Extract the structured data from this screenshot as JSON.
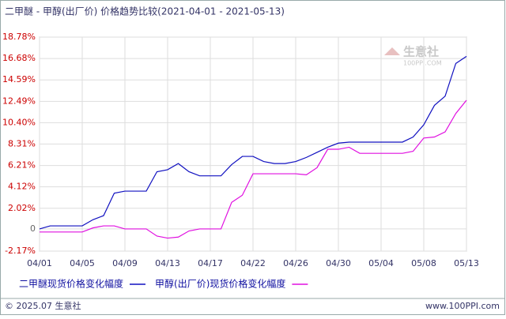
{
  "chart_data": {
    "type": "line",
    "title": "二甲醚 - 甲醇(出厂价) 价格趋势比较(2021-04-01 - 2021-05-13)",
    "categories": [
      "04/01",
      null,
      null,
      null,
      "04/05",
      null,
      null,
      null,
      "04/09",
      null,
      null,
      null,
      "04/13",
      null,
      null,
      null,
      "04/17",
      null,
      null,
      null,
      "04/22",
      null,
      null,
      null,
      "04/26",
      null,
      null,
      null,
      "04/30",
      null,
      null,
      null,
      "05/04",
      null,
      null,
      null,
      "05/08",
      null,
      null,
      null,
      "05/13"
    ],
    "series": [
      {
        "name": "二甲醚现货价格变化幅度",
        "color": "#1010c0",
        "values": [
          0,
          0.3,
          0.3,
          0.3,
          0.3,
          0.9,
          1.3,
          3.5,
          3.7,
          3.7,
          3.7,
          5.6,
          5.8,
          6.4,
          5.6,
          5.2,
          5.2,
          5.2,
          6.3,
          7.1,
          7.1,
          6.6,
          6.4,
          6.4,
          6.6,
          7.0,
          7.5,
          8.0,
          8.4,
          8.5,
          8.5,
          8.5,
          8.5,
          8.5,
          8.5,
          9.0,
          10.2,
          12.1,
          13.0,
          16.2,
          16.9
        ]
      },
      {
        "name": "甲醇(出厂价)现货价格变化幅度",
        "color": "#e010e0",
        "values": [
          -0.3,
          -0.3,
          -0.3,
          -0.3,
          -0.3,
          0.1,
          0.3,
          0.3,
          0,
          0,
          0,
          -0.7,
          -0.9,
          -0.8,
          -0.2,
          0,
          0,
          0,
          2.6,
          3.3,
          5.4,
          5.4,
          5.4,
          5.4,
          5.4,
          5.3,
          6.0,
          7.8,
          7.8,
          8.0,
          7.4,
          7.4,
          7.4,
          7.4,
          7.4,
          7.6,
          8.9,
          9.0,
          9.5,
          11.3,
          12.6
        ]
      }
    ],
    "ylim": [
      -2.17,
      18.78
    ],
    "yticks": [
      {
        "value": -2.17,
        "label": "-2.17%"
      },
      0,
      {
        "value": 2.02,
        "label": "2.02%"
      },
      {
        "value": 4.12,
        "label": "4.12%"
      },
      {
        "value": 6.21,
        "label": "6.21%"
      },
      {
        "value": 8.31,
        "label": "8.31%"
      },
      {
        "value": 10.4,
        "label": "10.40%"
      },
      {
        "value": 12.49,
        "label": "12.49%"
      },
      {
        "value": 14.59,
        "label": "14.59%"
      },
      {
        "value": 16.68,
        "label": "16.68%"
      },
      {
        "value": 18.78,
        "label": "18.78%"
      }
    ],
    "grid": true,
    "watermark": [
      "生意社",
      "100PPI.COM"
    ],
    "footer_left": "© 2025.07 生意社",
    "footer_right": "www.100PPI.com"
  }
}
